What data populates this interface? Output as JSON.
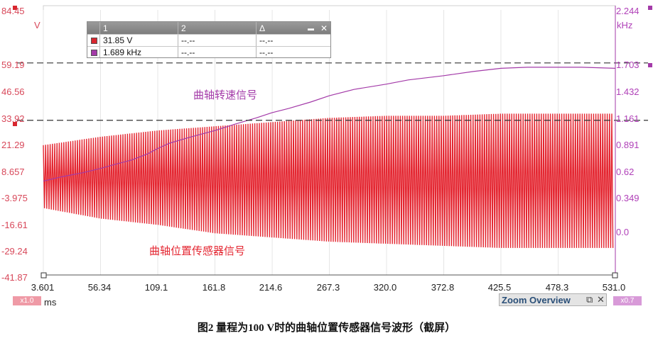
{
  "chart_data": {
    "type": "line",
    "xlabel": "ms",
    "x_ticks": [
      "3.601",
      "56.34",
      "109.1",
      "161.8",
      "214.6",
      "267.3",
      "320.0",
      "372.8",
      "425.5",
      "478.3",
      "531.0"
    ],
    "xlim": [
      3.601,
      531.0
    ],
    "y_left": {
      "unit": "V",
      "ticks": [
        "84.45",
        "59.19",
        "46.56",
        "33.92",
        "21.29",
        "8.657",
        "-3.975",
        "-16.61",
        "-29.24",
        "-41.87"
      ],
      "ylim": [
        -41.87,
        84.45
      ]
    },
    "y_right": {
      "unit": "kHz",
      "ticks": [
        "2.244",
        "1.703",
        "1.432",
        "1.161",
        "0.891",
        "0.62",
        "0.349",
        "0.0"
      ],
      "ylim": [
        -0.27,
        2.244
      ]
    },
    "series": [
      {
        "name": "曲轴转速信号",
        "axis": "right",
        "color": "#a33aa8",
        "x": [
          3.601,
          20,
          40,
          56.34,
          70,
          85,
          100,
          109.1,
          120,
          140,
          161.8,
          180,
          200,
          214.6,
          230,
          250,
          267.3,
          290,
          320.0,
          340,
          372.8,
          400,
          425.5,
          450,
          478.3,
          500,
          531.0
        ],
        "values": [
          0.62,
          0.66,
          0.7,
          0.74,
          0.78,
          0.82,
          0.88,
          0.93,
          0.98,
          1.04,
          1.1,
          1.16,
          1.22,
          1.27,
          1.31,
          1.37,
          1.43,
          1.49,
          1.54,
          1.58,
          1.62,
          1.66,
          1.69,
          1.7,
          1.7,
          1.7,
          1.69
        ]
      },
      {
        "name": "曲轴位置传感器信号",
        "axis": "left",
        "color": "#e42530",
        "envelope_x": [
          3.601,
          56.34,
          109.1,
          161.8,
          214.6,
          267.3,
          320.0,
          372.8,
          425.5,
          478.3,
          531.0
        ],
        "envelope_max": [
          20,
          24,
          27,
          29,
          31,
          33,
          34,
          34,
          35,
          35,
          35
        ],
        "envelope_min": [
          -10,
          -15,
          -18,
          -22,
          -24,
          -26,
          -27,
          -28,
          -29,
          -29,
          -29
        ]
      }
    ],
    "annotations": [
      "曲轴转速信号",
      "曲轴位置传感器信号"
    ],
    "reference_lines": [
      {
        "axis": "left",
        "value": 59.19,
        "style": "dashed"
      },
      {
        "axis": "left",
        "value": 31.85,
        "style": "dashed"
      }
    ]
  },
  "cursor_table": {
    "headers": [
      "1",
      "2",
      "Δ"
    ],
    "rows": [
      {
        "color": "#d8262e",
        "v1": "31.85 V",
        "v2": "--.--",
        "vd": "--.--"
      },
      {
        "color": "#a33aa8",
        "v1": "1.689 kHz",
        "v2": "--.--",
        "vd": "--.--"
      }
    ],
    "close_glyph": "✕",
    "min_glyph": "▬"
  },
  "labels": {
    "zoom_overview": "Zoom Overview",
    "zoom_left_tag": "x1.0",
    "zoom_right_tag": "x0.7",
    "caption": "图2    量程为100 V时的曲轴位置传感器信号波形（截屏）"
  },
  "colors": {
    "position_red": "#e42530",
    "speed_purple": "#a33aa8",
    "left_axis_text": "#d8485a",
    "right_axis_text": "#b040b8",
    "plot_bg": "#ffffff"
  }
}
